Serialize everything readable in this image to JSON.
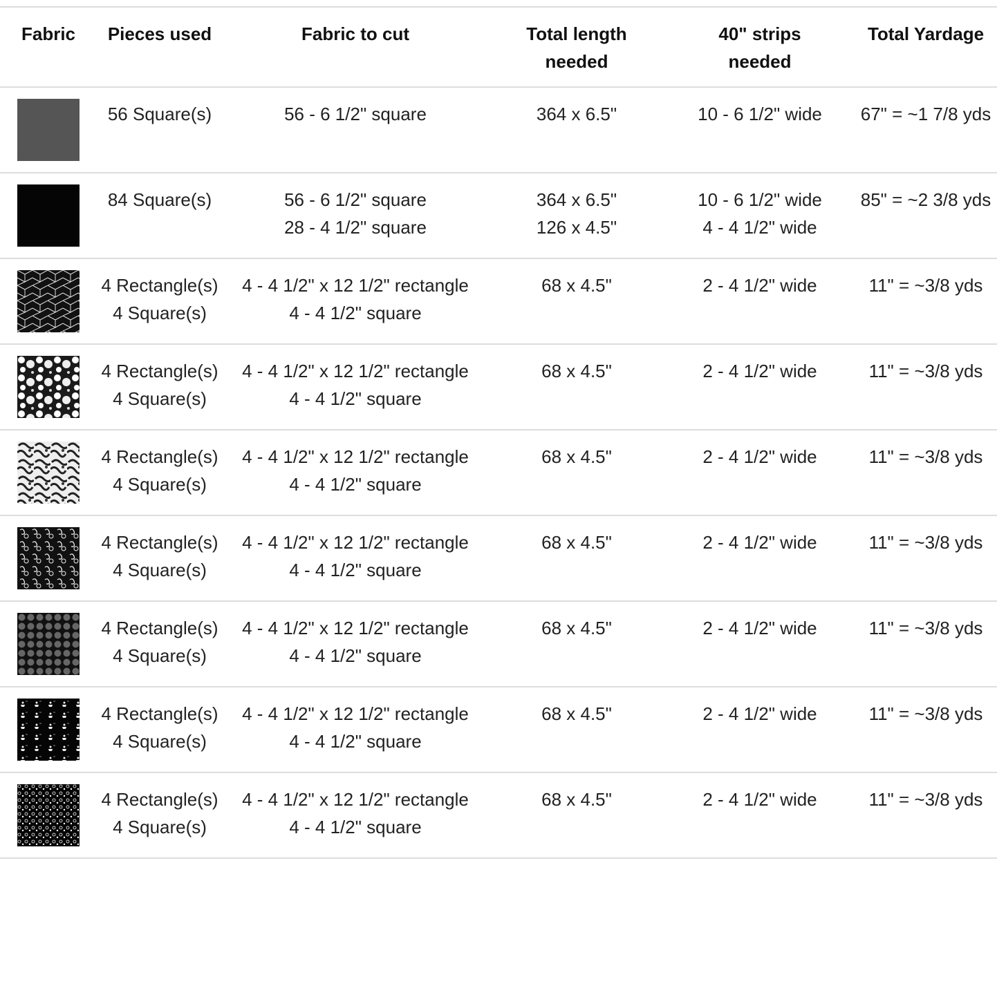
{
  "table": {
    "headers": [
      "Fabric",
      "Pieces used",
      "Fabric to cut",
      "Total length needed",
      "40\" strips needed",
      "Total Yardage"
    ],
    "rows": [
      {
        "pieces": [
          "56 Square(s)"
        ],
        "cut": [
          "56 - 6 1/2\" square"
        ],
        "length": [
          "364 x 6.5\""
        ],
        "strips": [
          "10 - 6 1/2\" wide"
        ],
        "yardage": "67\" = ~1 7/8 yds"
      },
      {
        "pieces": [
          "84 Square(s)"
        ],
        "cut": [
          "56 - 6 1/2\" square",
          "28 - 4 1/2\" square"
        ],
        "length": [
          "364 x 6.5\"",
          "126 x 4.5\""
        ],
        "strips": [
          "10 - 6 1/2\" wide",
          "4 - 4 1/2\" wide"
        ],
        "yardage": "85\" = ~2 3/8 yds"
      },
      {
        "pieces": [
          "4 Rectangle(s)",
          "4 Square(s)"
        ],
        "cut": [
          "4 - 4 1/2\" x 12 1/2\" rectangle",
          "4 - 4 1/2\" square"
        ],
        "length": [
          "68 x 4.5\""
        ],
        "strips": [
          "2 - 4 1/2\" wide"
        ],
        "yardage": "11\" = ~3/8 yds"
      },
      {
        "pieces": [
          "4 Rectangle(s)",
          "4 Square(s)"
        ],
        "cut": [
          "4 - 4 1/2\" x 12 1/2\" rectangle",
          "4 - 4 1/2\" square"
        ],
        "length": [
          "68 x 4.5\""
        ],
        "strips": [
          "2 - 4 1/2\" wide"
        ],
        "yardage": "11\" = ~3/8 yds"
      },
      {
        "pieces": [
          "4 Rectangle(s)",
          "4 Square(s)"
        ],
        "cut": [
          "4 - 4 1/2\" x 12 1/2\" rectangle",
          "4 - 4 1/2\" square"
        ],
        "length": [
          "68 x 4.5\""
        ],
        "strips": [
          "2 - 4 1/2\" wide"
        ],
        "yardage": "11\" = ~3/8 yds"
      },
      {
        "pieces": [
          "4 Rectangle(s)",
          "4 Square(s)"
        ],
        "cut": [
          "4 - 4 1/2\" x 12 1/2\" rectangle",
          "4 - 4 1/2\" square"
        ],
        "length": [
          "68 x 4.5\""
        ],
        "strips": [
          "2 - 4 1/2\" wide"
        ],
        "yardage": "11\" = ~3/8 yds"
      },
      {
        "pieces": [
          "4 Rectangle(s)",
          "4 Square(s)"
        ],
        "cut": [
          "4 - 4 1/2\" x 12 1/2\" rectangle",
          "4 - 4 1/2\" square"
        ],
        "length": [
          "68 x 4.5\""
        ],
        "strips": [
          "2 - 4 1/2\" wide"
        ],
        "yardage": "11\" = ~3/8 yds"
      },
      {
        "pieces": [
          "4 Rectangle(s)",
          "4 Square(s)"
        ],
        "cut": [
          "4 - 4 1/2\" x 12 1/2\" rectangle",
          "4 - 4 1/2\" square"
        ],
        "length": [
          "68 x 4.5\""
        ],
        "strips": [
          "2 - 4 1/2\" wide"
        ],
        "yardage": "11\" = ~3/8 yds"
      },
      {
        "pieces": [
          "4 Rectangle(s)",
          "4 Square(s)"
        ],
        "cut": [
          "4 - 4 1/2\" x 12 1/2\" rectangle",
          "4 - 4 1/2\" square"
        ],
        "length": [
          "68 x 4.5\""
        ],
        "strips": [
          "2 - 4 1/2\" wide"
        ],
        "yardage": "11\" = ~3/8 yds"
      }
    ]
  }
}
